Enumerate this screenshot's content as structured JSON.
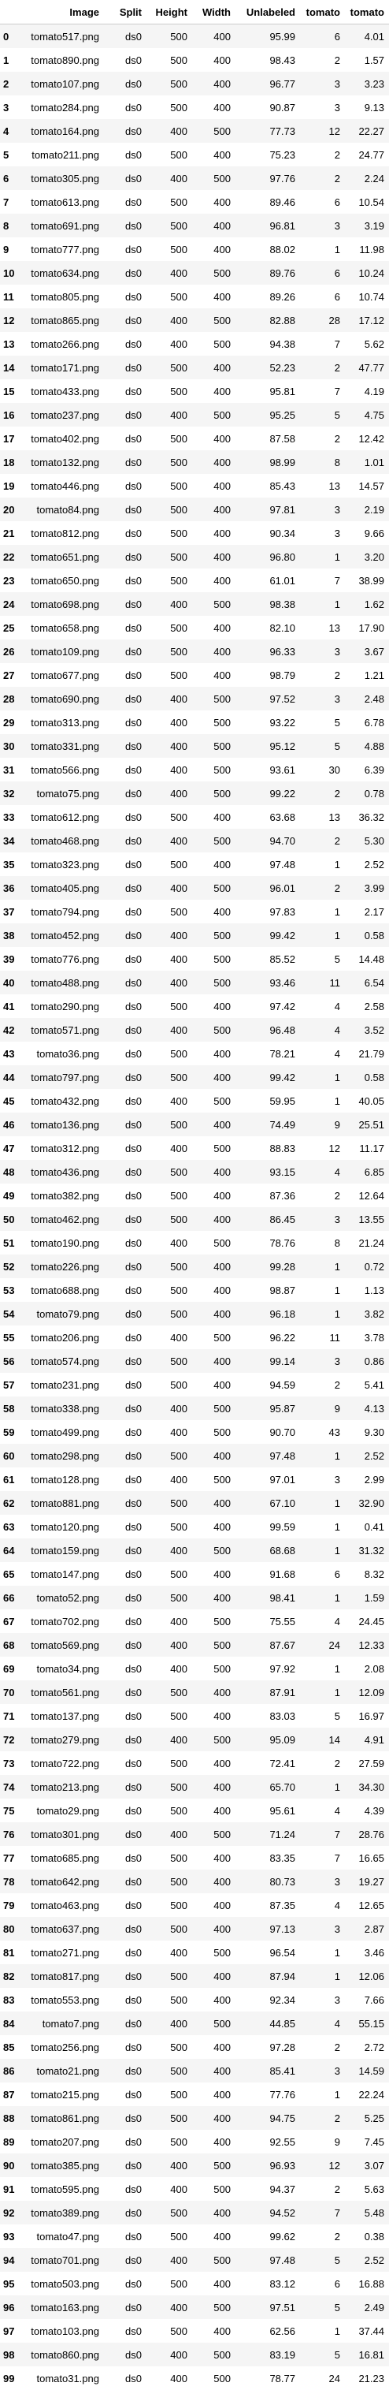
{
  "table": {
    "columns": [
      "",
      "Image",
      "Split",
      "Height",
      "Width",
      "Unlabeled",
      "tomato",
      "tomato"
    ],
    "rows": [
      [
        "0",
        "tomato517.png",
        "ds0",
        "500",
        "400",
        "95.99",
        "6",
        "4.01"
      ],
      [
        "1",
        "tomato890.png",
        "ds0",
        "500",
        "400",
        "98.43",
        "2",
        "1.57"
      ],
      [
        "2",
        "tomato107.png",
        "ds0",
        "500",
        "400",
        "96.77",
        "3",
        "3.23"
      ],
      [
        "3",
        "tomato284.png",
        "ds0",
        "500",
        "400",
        "90.87",
        "3",
        "9.13"
      ],
      [
        "4",
        "tomato164.png",
        "ds0",
        "400",
        "500",
        "77.73",
        "12",
        "22.27"
      ],
      [
        "5",
        "tomato211.png",
        "ds0",
        "500",
        "400",
        "75.23",
        "2",
        "24.77"
      ],
      [
        "6",
        "tomato305.png",
        "ds0",
        "400",
        "500",
        "97.76",
        "2",
        "2.24"
      ],
      [
        "7",
        "tomato613.png",
        "ds0",
        "500",
        "400",
        "89.46",
        "6",
        "10.54"
      ],
      [
        "8",
        "tomato691.png",
        "ds0",
        "500",
        "400",
        "96.81",
        "3",
        "3.19"
      ],
      [
        "9",
        "tomato777.png",
        "ds0",
        "500",
        "400",
        "88.02",
        "1",
        "11.98"
      ],
      [
        "10",
        "tomato634.png",
        "ds0",
        "400",
        "500",
        "89.76",
        "6",
        "10.24"
      ],
      [
        "11",
        "tomato805.png",
        "ds0",
        "500",
        "400",
        "89.26",
        "6",
        "10.74"
      ],
      [
        "12",
        "tomato865.png",
        "ds0",
        "400",
        "500",
        "82.88",
        "28",
        "17.12"
      ],
      [
        "13",
        "tomato266.png",
        "ds0",
        "400",
        "500",
        "94.38",
        "7",
        "5.62"
      ],
      [
        "14",
        "tomato171.png",
        "ds0",
        "500",
        "400",
        "52.23",
        "2",
        "47.77"
      ],
      [
        "15",
        "tomato433.png",
        "ds0",
        "500",
        "400",
        "95.81",
        "7",
        "4.19"
      ],
      [
        "16",
        "tomato237.png",
        "ds0",
        "400",
        "500",
        "95.25",
        "5",
        "4.75"
      ],
      [
        "17",
        "tomato402.png",
        "ds0",
        "500",
        "400",
        "87.58",
        "2",
        "12.42"
      ],
      [
        "18",
        "tomato132.png",
        "ds0",
        "500",
        "400",
        "98.99",
        "8",
        "1.01"
      ],
      [
        "19",
        "tomato446.png",
        "ds0",
        "500",
        "400",
        "85.43",
        "13",
        "14.57"
      ],
      [
        "20",
        "tomato84.png",
        "ds0",
        "500",
        "400",
        "97.81",
        "3",
        "2.19"
      ],
      [
        "21",
        "tomato812.png",
        "ds0",
        "500",
        "400",
        "90.34",
        "3",
        "9.66"
      ],
      [
        "22",
        "tomato651.png",
        "ds0",
        "500",
        "400",
        "96.80",
        "1",
        "3.20"
      ],
      [
        "23",
        "tomato650.png",
        "ds0",
        "500",
        "400",
        "61.01",
        "7",
        "38.99"
      ],
      [
        "24",
        "tomato698.png",
        "ds0",
        "400",
        "500",
        "98.38",
        "1",
        "1.62"
      ],
      [
        "25",
        "tomato658.png",
        "ds0",
        "500",
        "400",
        "82.10",
        "13",
        "17.90"
      ],
      [
        "26",
        "tomato109.png",
        "ds0",
        "500",
        "400",
        "96.33",
        "3",
        "3.67"
      ],
      [
        "27",
        "tomato677.png",
        "ds0",
        "500",
        "400",
        "98.79",
        "2",
        "1.21"
      ],
      [
        "28",
        "tomato690.png",
        "ds0",
        "400",
        "500",
        "97.52",
        "3",
        "2.48"
      ],
      [
        "29",
        "tomato313.png",
        "ds0",
        "400",
        "500",
        "93.22",
        "5",
        "6.78"
      ],
      [
        "30",
        "tomato331.png",
        "ds0",
        "400",
        "500",
        "95.12",
        "5",
        "4.88"
      ],
      [
        "31",
        "tomato566.png",
        "ds0",
        "400",
        "500",
        "93.61",
        "30",
        "6.39"
      ],
      [
        "32",
        "tomato75.png",
        "ds0",
        "400",
        "500",
        "99.22",
        "2",
        "0.78"
      ],
      [
        "33",
        "tomato612.png",
        "ds0",
        "500",
        "400",
        "63.68",
        "13",
        "36.32"
      ],
      [
        "34",
        "tomato468.png",
        "ds0",
        "400",
        "500",
        "94.70",
        "2",
        "5.30"
      ],
      [
        "35",
        "tomato323.png",
        "ds0",
        "500",
        "400",
        "97.48",
        "1",
        "2.52"
      ],
      [
        "36",
        "tomato405.png",
        "ds0",
        "400",
        "500",
        "96.01",
        "2",
        "3.99"
      ],
      [
        "37",
        "tomato794.png",
        "ds0",
        "500",
        "400",
        "97.83",
        "1",
        "2.17"
      ],
      [
        "38",
        "tomato452.png",
        "ds0",
        "400",
        "500",
        "99.42",
        "1",
        "0.58"
      ],
      [
        "39",
        "tomato776.png",
        "ds0",
        "400",
        "500",
        "85.52",
        "5",
        "14.48"
      ],
      [
        "40",
        "tomato488.png",
        "ds0",
        "400",
        "500",
        "93.46",
        "11",
        "6.54"
      ],
      [
        "41",
        "tomato290.png",
        "ds0",
        "500",
        "400",
        "97.42",
        "4",
        "2.58"
      ],
      [
        "42",
        "tomato571.png",
        "ds0",
        "400",
        "500",
        "96.48",
        "4",
        "3.52"
      ],
      [
        "43",
        "tomato36.png",
        "ds0",
        "500",
        "400",
        "78.21",
        "4",
        "21.79"
      ],
      [
        "44",
        "tomato797.png",
        "ds0",
        "500",
        "400",
        "99.42",
        "1",
        "0.58"
      ],
      [
        "45",
        "tomato432.png",
        "ds0",
        "400",
        "500",
        "59.95",
        "1",
        "40.05"
      ],
      [
        "46",
        "tomato136.png",
        "ds0",
        "500",
        "400",
        "74.49",
        "9",
        "25.51"
      ],
      [
        "47",
        "tomato312.png",
        "ds0",
        "400",
        "500",
        "88.83",
        "12",
        "11.17"
      ],
      [
        "48",
        "tomato436.png",
        "ds0",
        "500",
        "400",
        "93.15",
        "4",
        "6.85"
      ],
      [
        "49",
        "tomato382.png",
        "ds0",
        "500",
        "400",
        "87.36",
        "2",
        "12.64"
      ],
      [
        "50",
        "tomato462.png",
        "ds0",
        "500",
        "400",
        "86.45",
        "3",
        "13.55"
      ],
      [
        "51",
        "tomato190.png",
        "ds0",
        "400",
        "500",
        "78.76",
        "8",
        "21.24"
      ],
      [
        "52",
        "tomato226.png",
        "ds0",
        "500",
        "400",
        "99.28",
        "1",
        "0.72"
      ],
      [
        "53",
        "tomato688.png",
        "ds0",
        "500",
        "400",
        "98.87",
        "1",
        "1.13"
      ],
      [
        "54",
        "tomato79.png",
        "ds0",
        "500",
        "400",
        "96.18",
        "1",
        "3.82"
      ],
      [
        "55",
        "tomato206.png",
        "ds0",
        "400",
        "500",
        "96.22",
        "11",
        "3.78"
      ],
      [
        "56",
        "tomato574.png",
        "ds0",
        "500",
        "400",
        "99.14",
        "3",
        "0.86"
      ],
      [
        "57",
        "tomato231.png",
        "ds0",
        "500",
        "400",
        "94.59",
        "2",
        "5.41"
      ],
      [
        "58",
        "tomato338.png",
        "ds0",
        "400",
        "500",
        "95.87",
        "9",
        "4.13"
      ],
      [
        "59",
        "tomato499.png",
        "ds0",
        "400",
        "500",
        "90.70",
        "43",
        "9.30"
      ],
      [
        "60",
        "tomato298.png",
        "ds0",
        "500",
        "400",
        "97.48",
        "1",
        "2.52"
      ],
      [
        "61",
        "tomato128.png",
        "ds0",
        "400",
        "500",
        "97.01",
        "3",
        "2.99"
      ],
      [
        "62",
        "tomato881.png",
        "ds0",
        "500",
        "400",
        "67.10",
        "1",
        "32.90"
      ],
      [
        "63",
        "tomato120.png",
        "ds0",
        "500",
        "400",
        "99.59",
        "1",
        "0.41"
      ],
      [
        "64",
        "tomato159.png",
        "ds0",
        "400",
        "500",
        "68.68",
        "1",
        "31.32"
      ],
      [
        "65",
        "tomato147.png",
        "ds0",
        "500",
        "400",
        "91.68",
        "6",
        "8.32"
      ],
      [
        "66",
        "tomato52.png",
        "ds0",
        "500",
        "400",
        "98.41",
        "1",
        "1.59"
      ],
      [
        "67",
        "tomato702.png",
        "ds0",
        "400",
        "500",
        "75.55",
        "4",
        "24.45"
      ],
      [
        "68",
        "tomato569.png",
        "ds0",
        "400",
        "500",
        "87.67",
        "24",
        "12.33"
      ],
      [
        "69",
        "tomato34.png",
        "ds0",
        "400",
        "500",
        "97.92",
        "1",
        "2.08"
      ],
      [
        "70",
        "tomato561.png",
        "ds0",
        "500",
        "400",
        "87.91",
        "1",
        "12.09"
      ],
      [
        "71",
        "tomato137.png",
        "ds0",
        "500",
        "400",
        "83.03",
        "5",
        "16.97"
      ],
      [
        "72",
        "tomato279.png",
        "ds0",
        "400",
        "500",
        "95.09",
        "14",
        "4.91"
      ],
      [
        "73",
        "tomato722.png",
        "ds0",
        "500",
        "400",
        "72.41",
        "2",
        "27.59"
      ],
      [
        "74",
        "tomato213.png",
        "ds0",
        "500",
        "400",
        "65.70",
        "1",
        "34.30"
      ],
      [
        "75",
        "tomato29.png",
        "ds0",
        "500",
        "400",
        "95.61",
        "4",
        "4.39"
      ],
      [
        "76",
        "tomato301.png",
        "ds0",
        "400",
        "500",
        "71.24",
        "7",
        "28.76"
      ],
      [
        "77",
        "tomato685.png",
        "ds0",
        "500",
        "400",
        "83.35",
        "7",
        "16.65"
      ],
      [
        "78",
        "tomato642.png",
        "ds0",
        "500",
        "400",
        "80.73",
        "3",
        "19.27"
      ],
      [
        "79",
        "tomato463.png",
        "ds0",
        "500",
        "400",
        "87.35",
        "4",
        "12.65"
      ],
      [
        "80",
        "tomato637.png",
        "ds0",
        "500",
        "400",
        "97.13",
        "3",
        "2.87"
      ],
      [
        "81",
        "tomato271.png",
        "ds0",
        "400",
        "500",
        "96.54",
        "1",
        "3.46"
      ],
      [
        "82",
        "tomato817.png",
        "ds0",
        "500",
        "400",
        "87.94",
        "1",
        "12.06"
      ],
      [
        "83",
        "tomato553.png",
        "ds0",
        "500",
        "400",
        "92.34",
        "3",
        "7.66"
      ],
      [
        "84",
        "tomato7.png",
        "ds0",
        "400",
        "500",
        "44.85",
        "4",
        "55.15"
      ],
      [
        "85",
        "tomato256.png",
        "ds0",
        "500",
        "400",
        "97.28",
        "2",
        "2.72"
      ],
      [
        "86",
        "tomato21.png",
        "ds0",
        "500",
        "400",
        "85.41",
        "3",
        "14.59"
      ],
      [
        "87",
        "tomato215.png",
        "ds0",
        "500",
        "400",
        "77.76",
        "1",
        "22.24"
      ],
      [
        "88",
        "tomato861.png",
        "ds0",
        "500",
        "400",
        "94.75",
        "2",
        "5.25"
      ],
      [
        "89",
        "tomato207.png",
        "ds0",
        "500",
        "400",
        "92.55",
        "9",
        "7.45"
      ],
      [
        "90",
        "tomato385.png",
        "ds0",
        "400",
        "500",
        "96.93",
        "12",
        "3.07"
      ],
      [
        "91",
        "tomato595.png",
        "ds0",
        "400",
        "500",
        "94.37",
        "2",
        "5.63"
      ],
      [
        "92",
        "tomato389.png",
        "ds0",
        "500",
        "400",
        "94.52",
        "7",
        "5.48"
      ],
      [
        "93",
        "tomato47.png",
        "ds0",
        "500",
        "400",
        "99.62",
        "2",
        "0.38"
      ],
      [
        "94",
        "tomato701.png",
        "ds0",
        "400",
        "500",
        "97.48",
        "5",
        "2.52"
      ],
      [
        "95",
        "tomato503.png",
        "ds0",
        "500",
        "400",
        "83.12",
        "6",
        "16.88"
      ],
      [
        "96",
        "tomato163.png",
        "ds0",
        "400",
        "500",
        "97.51",
        "5",
        "2.49"
      ],
      [
        "97",
        "tomato103.png",
        "ds0",
        "500",
        "400",
        "62.56",
        "1",
        "37.44"
      ],
      [
        "98",
        "tomato860.png",
        "ds0",
        "400",
        "500",
        "83.19",
        "5",
        "16.81"
      ],
      [
        "99",
        "tomato31.png",
        "ds0",
        "400",
        "500",
        "78.77",
        "24",
        "21.23"
      ]
    ]
  }
}
